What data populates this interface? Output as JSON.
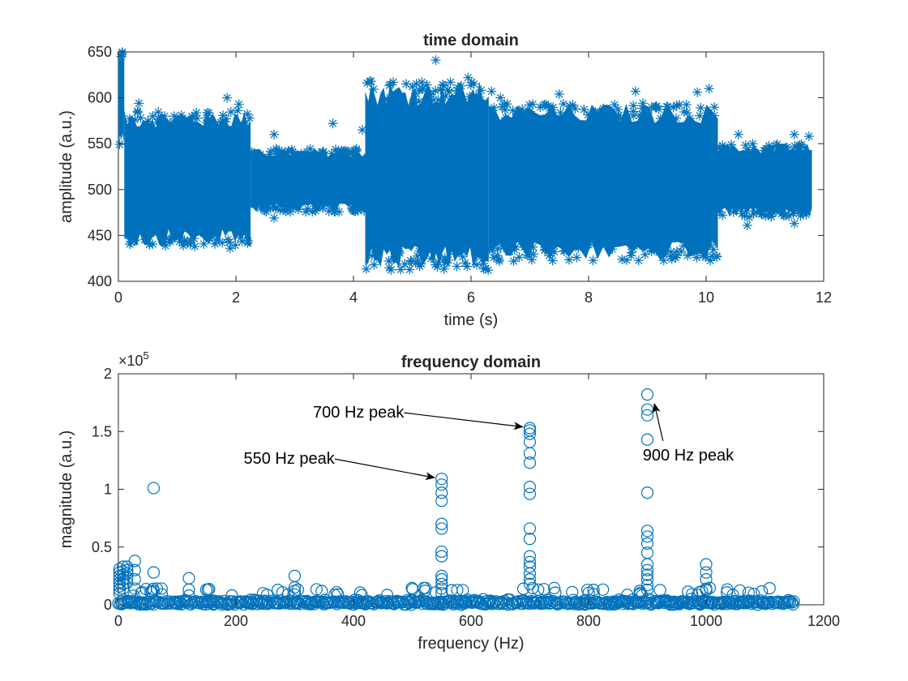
{
  "colors": {
    "marker": "#0072BD",
    "axis": "#262626",
    "background": "#FFFFFF",
    "annotation": "#000000"
  },
  "chart_data": [
    {
      "type": "scatter",
      "title": "time domain",
      "xlabel": "time (s)",
      "ylabel": "amplitude (a.u.)",
      "xlim": [
        0,
        12
      ],
      "ylim": [
        400,
        650
      ],
      "xticks": [
        0,
        2,
        4,
        6,
        8,
        10,
        12
      ],
      "yticks": [
        400,
        450,
        500,
        550,
        600,
        650
      ],
      "marker": "asterisk",
      "grid": false,
      "segments": [
        {
          "t_start": 0.0,
          "t_end": 0.1,
          "center": 600,
          "halfwidth": 45,
          "note": "initial transient"
        },
        {
          "t_start": 0.1,
          "t_end": 2.25,
          "center": 512,
          "halfwidth": 65
        },
        {
          "t_start": 2.25,
          "t_end": 4.2,
          "center": 510,
          "halfwidth": 30
        },
        {
          "t_start": 4.2,
          "t_end": 6.3,
          "center": 515,
          "halfwidth": 90
        },
        {
          "t_start": 6.3,
          "t_end": 10.2,
          "center": 508,
          "halfwidth": 75
        },
        {
          "t_start": 10.2,
          "t_end": 11.8,
          "center": 510,
          "halfwidth": 35
        }
      ],
      "outliers": [
        {
          "x": 0.05,
          "y": 645
        },
        {
          "x": 0.35,
          "y": 594
        },
        {
          "x": 0.95,
          "y": 580
        },
        {
          "x": 1.85,
          "y": 600
        },
        {
          "x": 2.05,
          "y": 593
        },
        {
          "x": 2.65,
          "y": 560
        },
        {
          "x": 3.65,
          "y": 572
        },
        {
          "x": 4.15,
          "y": 565
        },
        {
          "x": 4.3,
          "y": 618
        },
        {
          "x": 5.0,
          "y": 612
        },
        {
          "x": 5.25,
          "y": 614
        },
        {
          "x": 5.4,
          "y": 641
        },
        {
          "x": 5.65,
          "y": 617
        },
        {
          "x": 5.95,
          "y": 622
        },
        {
          "x": 6.35,
          "y": 607
        },
        {
          "x": 6.5,
          "y": 600
        },
        {
          "x": 7.5,
          "y": 604
        },
        {
          "x": 8.8,
          "y": 607
        },
        {
          "x": 9.85,
          "y": 606
        },
        {
          "x": 10.05,
          "y": 610
        },
        {
          "x": 10.55,
          "y": 560
        },
        {
          "x": 11.5,
          "y": 560
        },
        {
          "x": 11.75,
          "y": 558
        },
        {
          "x": 4.35,
          "y": 418
        },
        {
          "x": 5.1,
          "y": 422
        },
        {
          "x": 5.9,
          "y": 420
        },
        {
          "x": 6.25,
          "y": 414
        },
        {
          "x": 7.8,
          "y": 426
        },
        {
          "x": 9.4,
          "y": 432
        },
        {
          "x": 1.3,
          "y": 438
        },
        {
          "x": 1.9,
          "y": 436
        },
        {
          "x": 0.9,
          "y": 446
        },
        {
          "x": 2.65,
          "y": 469
        },
        {
          "x": 3.3,
          "y": 476
        },
        {
          "x": 10.7,
          "y": 461
        },
        {
          "x": 11.5,
          "y": 463
        }
      ]
    },
    {
      "type": "scatter",
      "title": "frequency domain",
      "xlabel": "frequency (Hz)",
      "ylabel": "magnitude (a.u.)",
      "xlim": [
        0,
        1200
      ],
      "ylim": [
        0,
        200000
      ],
      "xticks": [
        0,
        200,
        400,
        600,
        800,
        1000,
        1200
      ],
      "yticks": [
        0,
        50000,
        100000,
        150000,
        200000
      ],
      "ytick_labels": [
        "0",
        "0.5",
        "1",
        "1.5",
        "2"
      ],
      "exponent_label": "×10",
      "exponent_power": "5",
      "marker": "circle",
      "grid": false,
      "noise_floor_max_hz": 1150,
      "peaks": [
        {
          "x": 2,
          "values": [
            31000,
            28000,
            25000,
            22000,
            19000,
            16000,
            13000,
            10000
          ]
        },
        {
          "x": 8,
          "values": [
            33000,
            29000,
            26000,
            22000,
            18000,
            14000
          ]
        },
        {
          "x": 15,
          "values": [
            33000,
            30000,
            27000,
            23000,
            19000
          ]
        },
        {
          "x": 28,
          "values": [
            38000,
            30000,
            22000,
            14000
          ]
        },
        {
          "x": 60,
          "values": [
            101000,
            28000,
            12000
          ]
        },
        {
          "x": 120,
          "values": [
            23000,
            13000,
            8000
          ]
        },
        {
          "x": 300,
          "values": [
            25000,
            15000,
            12000,
            9000
          ]
        },
        {
          "x": 550,
          "values": [
            109000,
            104000,
            97000,
            90000,
            70000,
            66000,
            46000,
            42000,
            25000,
            22000,
            18000,
            14000,
            10000
          ]
        },
        {
          "x": 700,
          "values": [
            153000,
            151000,
            148000,
            141000,
            131000,
            123000,
            102000,
            96000,
            66000,
            57000,
            42000,
            37000,
            33000,
            27000,
            22000,
            18000
          ]
        },
        {
          "x": 900,
          "values": [
            182000,
            169000,
            164000,
            143000,
            97000,
            64000,
            59000,
            53000,
            45000,
            35000,
            30000,
            26000,
            22000,
            17000,
            13000
          ]
        },
        {
          "x": 1000,
          "values": [
            35000,
            28000,
            22000,
            14000
          ]
        }
      ],
      "annotations": [
        {
          "text": "550 Hz peak",
          "label_x": 368,
          "label_y": 122000,
          "target_x": 538,
          "target_y": 110000
        },
        {
          "text": "700 Hz peak",
          "label_x": 486,
          "label_y": 162000,
          "target_x": 688,
          "target_y": 154000
        },
        {
          "text": "900 Hz peak",
          "label_x": 968,
          "label_y": 125000,
          "target_x": 912,
          "target_y": 174000
        }
      ]
    }
  ]
}
